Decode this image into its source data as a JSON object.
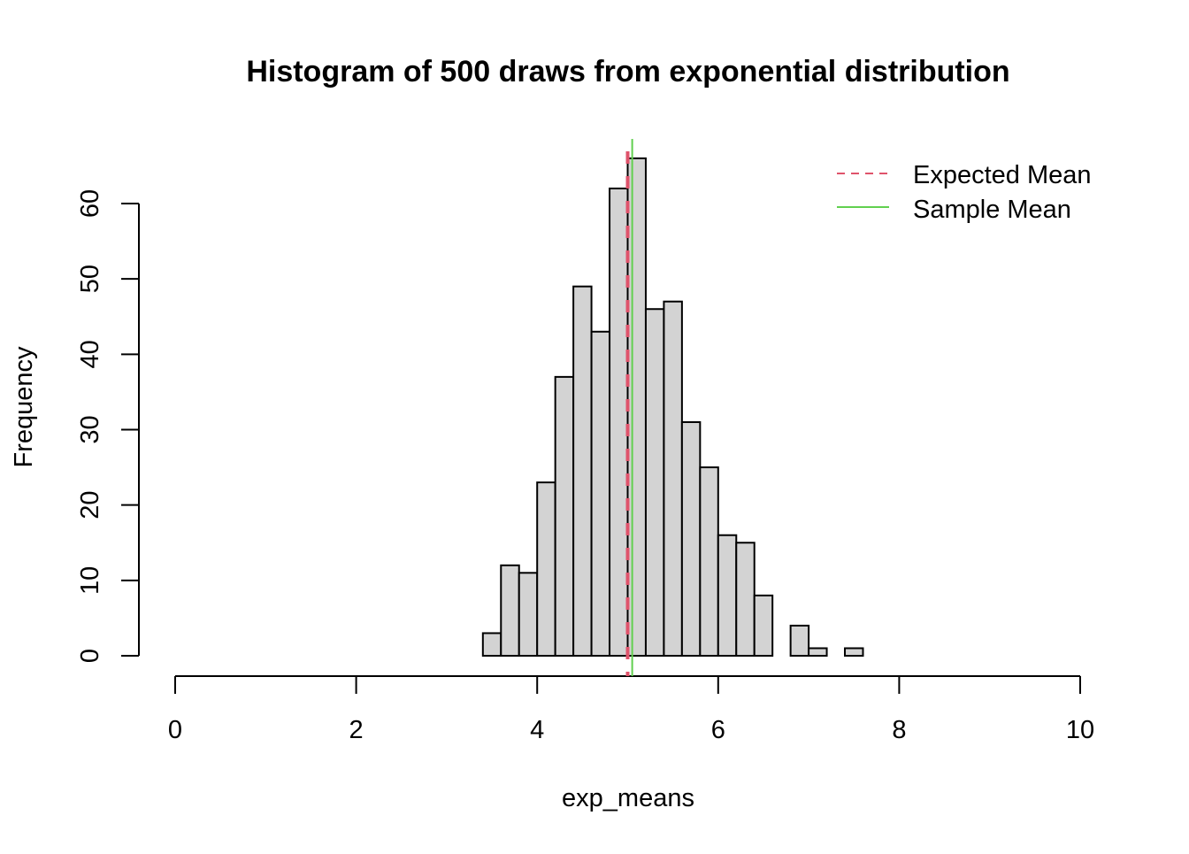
{
  "chart_data": {
    "type": "bar",
    "title": "Histogram of 500 draws from exponential distribution",
    "xlabel": "exp_means",
    "ylabel": "Frequency",
    "xlim": [
      0,
      10
    ],
    "ylim": [
      0,
      66
    ],
    "x_ticks": [
      "0",
      "2",
      "4",
      "6",
      "8",
      "10"
    ],
    "x_tick_values": [
      0,
      2,
      4,
      6,
      8,
      10
    ],
    "y_ticks": [
      "0",
      "10",
      "20",
      "30",
      "40",
      "50",
      "60"
    ],
    "y_tick_values": [
      0,
      10,
      20,
      30,
      40,
      50,
      60
    ],
    "bin_start": 3.4,
    "bin_width": 0.2,
    "values": [
      3,
      12,
      11,
      23,
      37,
      49,
      43,
      62,
      66,
      46,
      47,
      31,
      25,
      16,
      15,
      8,
      0,
      4,
      1,
      0,
      1
    ],
    "bar_fill": "#d3d3d3",
    "grid": false,
    "vlines": [
      {
        "name": "Expected Mean",
        "x": 5.0,
        "color": "#df536b",
        "style": "dashed"
      },
      {
        "name": "Sample Mean",
        "x": 5.05,
        "color": "#61d04f",
        "style": "solid"
      }
    ],
    "legend_position": "top-right",
    "legend": [
      "Expected Mean",
      "Sample Mean"
    ]
  }
}
